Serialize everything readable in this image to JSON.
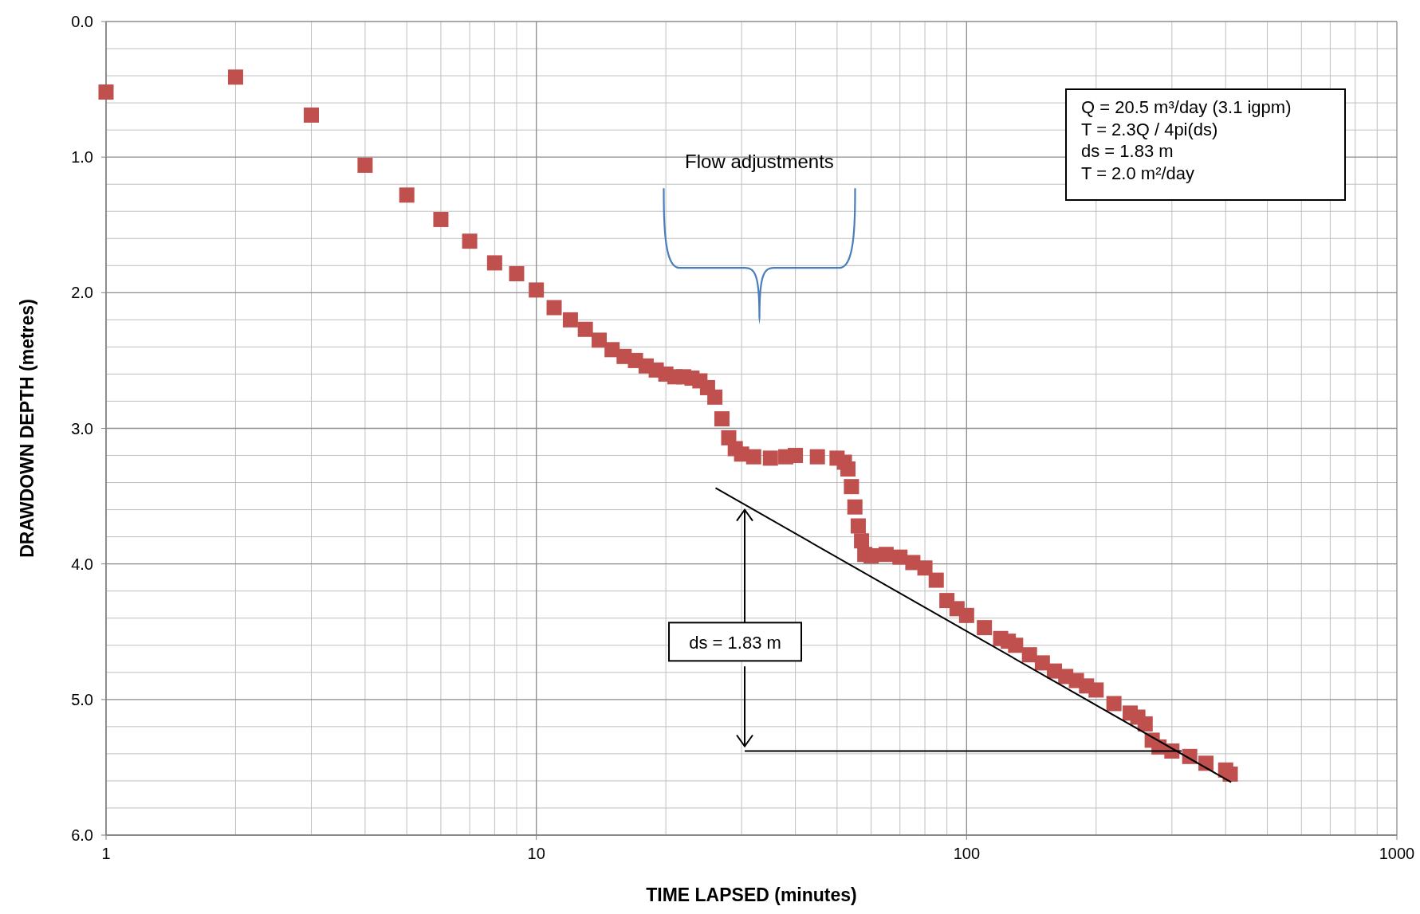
{
  "chart_data": {
    "type": "scatter",
    "xlabel": "TIME LAPSED (minutes)",
    "ylabel": "DRAWDOWN DEPTH (metres)",
    "log": "x",
    "xlim": [
      1,
      1000
    ],
    "xticks": [
      1,
      10,
      100,
      1000
    ],
    "ylim": [
      6,
      0
    ],
    "yticks": [
      {
        "value": 0,
        "label": "0.0"
      },
      {
        "value": 1,
        "label": "1.0"
      },
      {
        "value": 2,
        "label": "2.0"
      },
      {
        "value": 3,
        "label": "3.0"
      },
      {
        "value": 4,
        "label": "4.0"
      },
      {
        "value": 5,
        "label": "5.0"
      },
      {
        "value": 6,
        "label": "6.0"
      }
    ],
    "grid": true,
    "marker": "square",
    "series": [
      {
        "color": "#c0504d",
        "x": [
          1,
          2,
          3,
          4,
          5,
          6,
          7,
          8,
          9,
          10,
          11,
          12,
          13,
          14,
          15,
          16,
          17,
          18,
          19,
          20,
          21,
          22,
          23,
          24,
          25,
          26,
          27,
          28,
          29,
          30,
          32,
          35,
          38,
          40,
          45,
          50,
          52,
          53,
          54,
          55,
          56,
          57,
          58,
          60,
          65,
          70,
          75,
          80,
          85,
          90,
          95,
          100,
          110,
          120,
          125,
          130,
          140,
          150,
          160,
          170,
          180,
          190,
          200,
          220,
          240,
          250,
          260,
          270,
          280,
          300,
          330,
          360,
          400,
          410
        ],
        "values": [
          0.52,
          0.41,
          0.69,
          1.06,
          1.28,
          1.46,
          1.62,
          1.78,
          1.86,
          1.98,
          2.11,
          2.2,
          2.27,
          2.35,
          2.42,
          2.47,
          2.5,
          2.54,
          2.57,
          2.6,
          2.62,
          2.62,
          2.63,
          2.65,
          2.7,
          2.77,
          2.93,
          3.07,
          3.15,
          3.19,
          3.21,
          3.22,
          3.21,
          3.2,
          3.21,
          3.22,
          3.25,
          3.3,
          3.43,
          3.58,
          3.72,
          3.83,
          3.93,
          3.94,
          3.93,
          3.95,
          3.99,
          4.03,
          4.12,
          4.27,
          4.33,
          4.38,
          4.47,
          4.55,
          4.57,
          4.6,
          4.67,
          4.73,
          4.79,
          4.83,
          4.86,
          4.9,
          4.93,
          5.03,
          5.1,
          5.13,
          5.18,
          5.3,
          5.35,
          5.38,
          5.42,
          5.47,
          5.52,
          5.55
        ]
      },
      {
        "type": "line",
        "color": "#000000",
        "marker": "none",
        "x": [
          26.1,
          412
        ],
        "values": [
          3.44,
          5.61
        ]
      },
      {
        "type": "line",
        "color": "#000000",
        "marker": "none",
        "x": [
          30.5,
          316
        ],
        "values": [
          5.38,
          5.38
        ]
      }
    ],
    "annotations": [
      "Q = 20.5 m³/day (3.1 igpm)",
      "T = 2.3Q / 4pi(ds)",
      "ds = 1.83 m",
      "T = 2.0 m²/day",
      "Flow adjustments",
      {
        "text": "ds = 1.83 m",
        "x": 30.5,
        "y": 5.38
      }
    ]
  }
}
